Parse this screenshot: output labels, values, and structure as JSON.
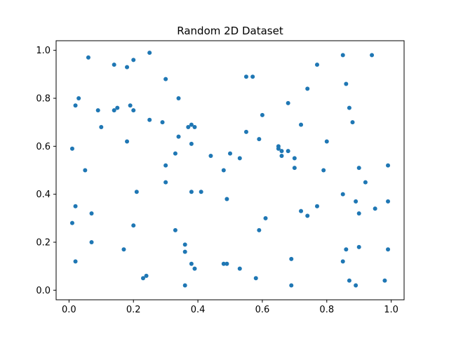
{
  "chart_data": {
    "type": "scatter",
    "title": "Random 2D Dataset",
    "xlabel": "",
    "ylabel": "",
    "xlim": [
      -0.04,
      1.04
    ],
    "ylim": [
      -0.04,
      1.04
    ],
    "xticks": [
      "0.0",
      "0.2",
      "0.4",
      "0.6",
      "0.8",
      "1.0"
    ],
    "yticks": [
      "0.0",
      "0.2",
      "0.4",
      "0.6",
      "0.8",
      "1.0"
    ],
    "grid": false,
    "marker_color": "#1f77b4",
    "series": [
      {
        "points": [
          [
            0.06,
            0.97
          ],
          [
            0.25,
            0.99
          ],
          [
            0.14,
            0.94
          ],
          [
            0.2,
            0.96
          ],
          [
            0.18,
            0.93
          ],
          [
            0.85,
            0.98
          ],
          [
            0.94,
            0.98
          ],
          [
            0.77,
            0.94
          ],
          [
            0.3,
            0.88
          ],
          [
            0.55,
            0.89
          ],
          [
            0.57,
            0.89
          ],
          [
            0.86,
            0.86
          ],
          [
            0.74,
            0.84
          ],
          [
            0.03,
            0.8
          ],
          [
            0.34,
            0.8
          ],
          [
            0.02,
            0.77
          ],
          [
            0.19,
            0.77
          ],
          [
            0.15,
            0.76
          ],
          [
            0.09,
            0.75
          ],
          [
            0.14,
            0.75
          ],
          [
            0.2,
            0.75
          ],
          [
            0.68,
            0.78
          ],
          [
            0.87,
            0.76
          ],
          [
            0.6,
            0.73
          ],
          [
            0.25,
            0.71
          ],
          [
            0.88,
            0.7
          ],
          [
            0.29,
            0.7
          ],
          [
            0.38,
            0.69
          ],
          [
            0.37,
            0.68
          ],
          [
            0.39,
            0.68
          ],
          [
            0.1,
            0.68
          ],
          [
            0.72,
            0.69
          ],
          [
            0.55,
            0.66
          ],
          [
            0.34,
            0.64
          ],
          [
            0.59,
            0.63
          ],
          [
            0.18,
            0.62
          ],
          [
            0.8,
            0.62
          ],
          [
            0.38,
            0.61
          ],
          [
            0.65,
            0.6
          ],
          [
            0.65,
            0.59
          ],
          [
            0.66,
            0.58
          ],
          [
            0.68,
            0.58
          ],
          [
            0.01,
            0.59
          ],
          [
            0.33,
            0.57
          ],
          [
            0.5,
            0.57
          ],
          [
            0.44,
            0.56
          ],
          [
            0.66,
            0.56
          ],
          [
            0.7,
            0.55
          ],
          [
            0.53,
            0.55
          ],
          [
            0.3,
            0.52
          ],
          [
            0.7,
            0.51
          ],
          [
            0.99,
            0.52
          ],
          [
            0.05,
            0.5
          ],
          [
            0.48,
            0.5
          ],
          [
            0.79,
            0.5
          ],
          [
            0.9,
            0.51
          ],
          [
            0.3,
            0.45
          ],
          [
            0.92,
            0.45
          ],
          [
            0.21,
            0.41
          ],
          [
            0.38,
            0.41
          ],
          [
            0.41,
            0.41
          ],
          [
            0.85,
            0.4
          ],
          [
            0.49,
            0.38
          ],
          [
            0.89,
            0.37
          ],
          [
            0.99,
            0.37
          ],
          [
            0.02,
            0.35
          ],
          [
            0.77,
            0.35
          ],
          [
            0.95,
            0.34
          ],
          [
            0.72,
            0.33
          ],
          [
            0.07,
            0.32
          ],
          [
            0.9,
            0.32
          ],
          [
            0.74,
            0.31
          ],
          [
            0.61,
            0.3
          ],
          [
            0.01,
            0.28
          ],
          [
            0.2,
            0.27
          ],
          [
            0.33,
            0.25
          ],
          [
            0.59,
            0.25
          ],
          [
            0.07,
            0.2
          ],
          [
            0.36,
            0.19
          ],
          [
            0.17,
            0.17
          ],
          [
            0.36,
            0.16
          ],
          [
            0.86,
            0.17
          ],
          [
            0.9,
            0.18
          ],
          [
            0.99,
            0.17
          ],
          [
            0.02,
            0.12
          ],
          [
            0.38,
            0.11
          ],
          [
            0.48,
            0.11
          ],
          [
            0.49,
            0.11
          ],
          [
            0.69,
            0.13
          ],
          [
            0.85,
            0.12
          ],
          [
            0.39,
            0.09
          ],
          [
            0.53,
            0.09
          ],
          [
            0.24,
            0.06
          ],
          [
            0.23,
            0.05
          ],
          [
            0.58,
            0.05
          ],
          [
            0.87,
            0.04
          ],
          [
            0.98,
            0.04
          ],
          [
            0.36,
            0.02
          ],
          [
            0.69,
            0.02
          ],
          [
            0.89,
            0.02
          ]
        ]
      }
    ]
  }
}
